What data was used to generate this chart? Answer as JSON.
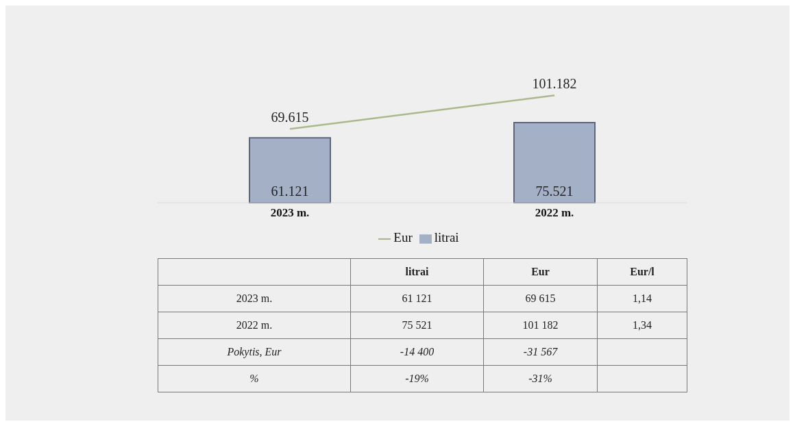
{
  "chart_data": {
    "type": "bar",
    "categories": [
      "2023 m.",
      "2022 m."
    ],
    "series": [
      {
        "name": "litrai",
        "color": "#a3b0c6",
        "values": [
          61121,
          75521
        ],
        "value_labels": [
          "61.121",
          "75.521"
        ]
      },
      {
        "name": "Eur",
        "type": "line",
        "color": "#a9b98c",
        "values": [
          69615,
          101182
        ],
        "value_labels": [
          "69.615",
          "101.182"
        ]
      }
    ],
    "legend": "bottom",
    "grid": false,
    "marker": "none",
    "annotations": [
      "litrai",
      "Eur",
      "Eur/l",
      "2023 m.",
      "61 121",
      "69 615",
      "1,14",
      "2022 m.",
      "75 521",
      "101 182",
      "1,34",
      "Pokytis, Eur",
      "-14 400",
      "-31 567",
      "%",
      "-19%",
      "-31%"
    ]
  }
}
